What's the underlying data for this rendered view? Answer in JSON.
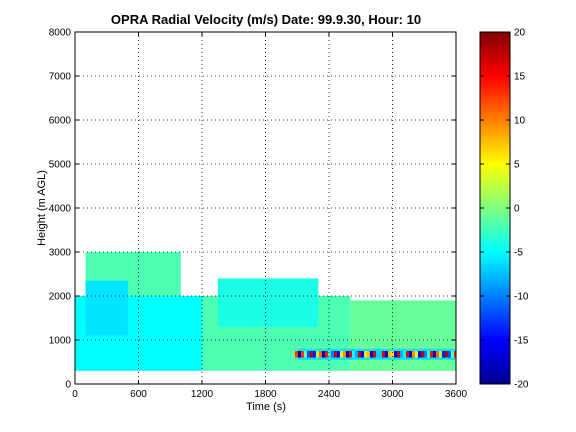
{
  "chart_data": {
    "type": "heatmap",
    "title": "OPRA Radial Velocity (m/s)  Date: 99.9.30, Hour: 10",
    "xlabel": "Time (s)",
    "ylabel": "Height (m AGL)",
    "xlim": [
      0,
      3600
    ],
    "ylim": [
      0,
      8000
    ],
    "x_ticks": [
      0,
      600,
      1200,
      1800,
      2400,
      3000,
      3600
    ],
    "y_ticks": [
      0,
      1000,
      2000,
      3000,
      4000,
      5000,
      6000,
      7000,
      8000
    ],
    "grid": true,
    "colormap": "jet",
    "colorbar": {
      "min": -20,
      "max": 20,
      "ticks": [
        20,
        15,
        10,
        5,
        0,
        -5,
        -10,
        -15,
        -20
      ],
      "location": "right"
    },
    "background_color": "#ffffff",
    "regions": [
      {
        "x": [
          0,
          1200
        ],
        "y": [
          300,
          2000
        ],
        "velocity": -5
      },
      {
        "x": [
          1200,
          2600
        ],
        "y": [
          300,
          2000
        ],
        "velocity": -2
      },
      {
        "x": [
          2600,
          3600
        ],
        "y": [
          300,
          1900
        ],
        "velocity": -1
      },
      {
        "x": [
          100,
          1000
        ],
        "y": [
          2000,
          3000
        ],
        "velocity": -2
      },
      {
        "x": [
          100,
          500
        ],
        "y": [
          1100,
          2350
        ],
        "velocity": -6
      },
      {
        "x": [
          1350,
          2300
        ],
        "y": [
          1300,
          2400
        ],
        "velocity": -4
      },
      {
        "x": [
          2100,
          3600
        ],
        "y": [
          550,
          800
        ],
        "velocity": -6
      }
    ],
    "noise_band": {
      "x": [
        2050,
        3600
      ],
      "y": [
        600,
        750
      ],
      "velocity_range": [
        -18,
        18
      ]
    }
  }
}
